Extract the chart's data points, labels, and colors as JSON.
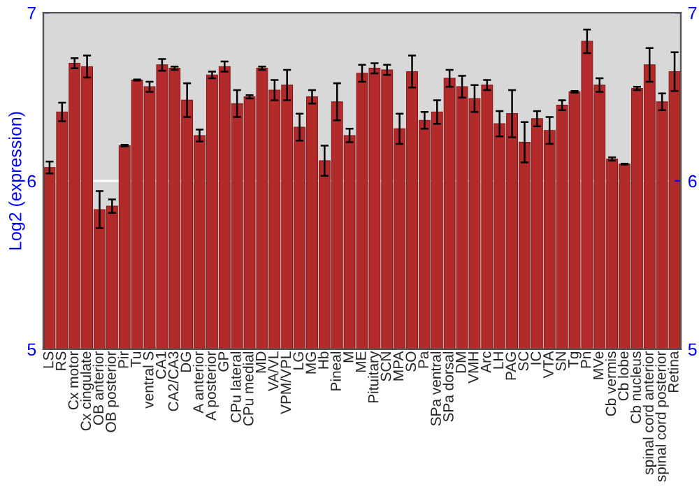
{
  "chart_data": {
    "type": "bar",
    "ylabel": "Log2 (expression)",
    "categories": [
      "LS",
      "RS",
      "Cx motor",
      "Cx cingulate",
      "OB anterior",
      "OB posterior",
      "Pir",
      "Tu",
      "ventral S",
      "CA1",
      "CA2/CA3",
      "DG",
      "A anterior",
      "A posterior",
      "GP",
      "CPu lateral",
      "CPu medial",
      "MD",
      "VA/VL",
      "VPM/VPL",
      "LG",
      "MG",
      "Hb",
      "Pineal",
      "M",
      "ME",
      "Pituitary",
      "SCN",
      "MPA",
      "SO",
      "Pa",
      "SPa ventral",
      "SPa dorsal",
      "DM",
      "VMH",
      "Arc",
      "LH",
      "PAG",
      "SC",
      "IC",
      "VTA",
      "SN",
      "Tg",
      "Pn",
      "MVe",
      "Cb vermis",
      "Cb lobe",
      "Cb nucleus",
      "spinal cord anterior",
      "spinal cord posterior",
      "Retina"
    ],
    "values": [
      6.08,
      6.41,
      6.7,
      6.68,
      5.83,
      5.85,
      6.21,
      6.6,
      6.56,
      6.69,
      6.67,
      6.48,
      6.27,
      6.63,
      6.68,
      6.46,
      6.5,
      6.67,
      6.54,
      6.57,
      6.32,
      6.5,
      6.12,
      6.47,
      6.27,
      6.64,
      6.67,
      6.66,
      6.31,
      6.65,
      6.36,
      6.41,
      6.61,
      6.56,
      6.49,
      6.57,
      6.34,
      6.4,
      6.23,
      6.37,
      6.3,
      6.45,
      6.53,
      6.83,
      6.57,
      6.13,
      6.1,
      6.55,
      6.69,
      6.47,
      6.65
    ],
    "errors": [
      0.035,
      0.055,
      0.03,
      0.065,
      0.11,
      0.04,
      0.005,
      0.003,
      0.03,
      0.035,
      0.01,
      0.1,
      0.035,
      0.02,
      0.03,
      0.08,
      0.01,
      0.01,
      0.06,
      0.09,
      0.08,
      0.04,
      0.09,
      0.11,
      0.04,
      0.05,
      0.03,
      0.03,
      0.09,
      0.095,
      0.05,
      0.07,
      0.05,
      0.065,
      0.08,
      0.03,
      0.075,
      0.14,
      0.12,
      0.045,
      0.08,
      0.03,
      0.005,
      0.07,
      0.04,
      0.01,
      0.003,
      0.01,
      0.1,
      0.05,
      0.115
    ],
    "color": "#b22a2a",
    "ylim": [
      5,
      7
    ],
    "yticks": [
      5,
      6,
      7
    ],
    "y2lim": [
      5,
      7
    ],
    "y2ticks": [
      5,
      6,
      7
    ],
    "grid": "y",
    "legend": false
  }
}
